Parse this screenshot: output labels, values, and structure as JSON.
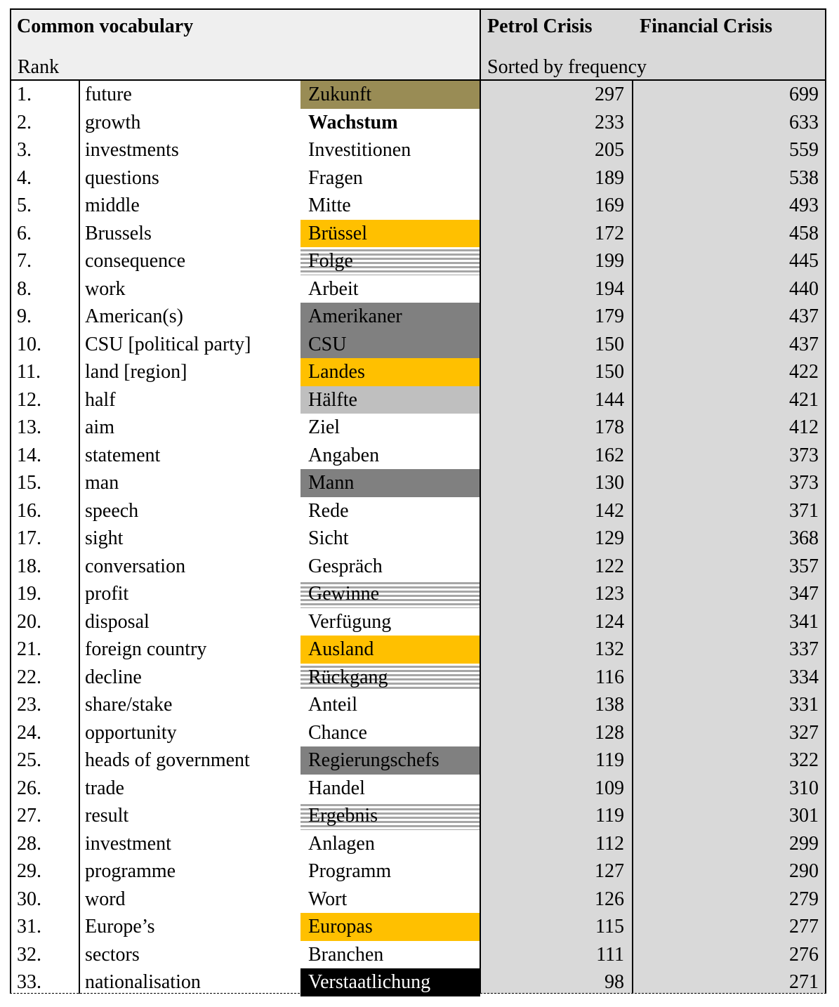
{
  "header": {
    "common_vocabulary": "Common vocabulary",
    "rank": "Rank",
    "petrol_crisis": "Petrol Crisis",
    "financial_crisis": "Financial Crisis",
    "sorted_by": "Sorted by frequency"
  },
  "highlight_colors": {
    "olive": "#998c55",
    "amber": "#ffc000",
    "dark_gray": "#808080",
    "light_gray": "#bfbfbf",
    "black": "#000000",
    "striped_gray": "#a6a6a6",
    "frequency_band": "#d9d9d9"
  },
  "rows": [
    {
      "rank": "1.",
      "english": "future",
      "german": "Zukunft",
      "petrol": "297",
      "financial": "699",
      "highlight": "olive"
    },
    {
      "rank": "2.",
      "english": "growth",
      "german": "Wachstum",
      "petrol": "233",
      "financial": "633",
      "highlight": "bold"
    },
    {
      "rank": "3.",
      "english": "investments",
      "german": "Investitionen",
      "petrol": "205",
      "financial": "559",
      "highlight": "none"
    },
    {
      "rank": "4.",
      "english": "questions",
      "german": "Fragen",
      "petrol": "189",
      "financial": "538",
      "highlight": "none"
    },
    {
      "rank": "5.",
      "english": "middle",
      "german": "Mitte",
      "petrol": "169",
      "financial": "493",
      "highlight": "none"
    },
    {
      "rank": "6.",
      "english": "Brussels",
      "german": "Brüssel",
      "petrol": "172",
      "financial": "458",
      "highlight": "amber"
    },
    {
      "rank": "7.",
      "english": "consequence",
      "german": "Folge",
      "petrol": "199",
      "financial": "445",
      "highlight": "striped"
    },
    {
      "rank": "8.",
      "english": "work",
      "german": "Arbeit",
      "petrol": "194",
      "financial": "440",
      "highlight": "none"
    },
    {
      "rank": "9.",
      "english": "American(s)",
      "german": "Amerikaner",
      "petrol": "179",
      "financial": "437",
      "highlight": "dark"
    },
    {
      "rank": "10.",
      "english": "CSU [political party]",
      "german": "CSU",
      "petrol": "150",
      "financial": "437",
      "highlight": "dark"
    },
    {
      "rank": "11.",
      "english": "land [region]",
      "german": "Landes",
      "petrol": "150",
      "financial": "422",
      "highlight": "amber"
    },
    {
      "rank": "12.",
      "english": "half",
      "german": "Hälfte",
      "petrol": "144",
      "financial": "421",
      "highlight": "light"
    },
    {
      "rank": "13.",
      "english": "aim",
      "german": "Ziel",
      "petrol": "178",
      "financial": "412",
      "highlight": "none"
    },
    {
      "rank": "14.",
      "english": "statement",
      "german": "Angaben",
      "petrol": "162",
      "financial": "373",
      "highlight": "none"
    },
    {
      "rank": "15.",
      "english": "man",
      "german": "Mann",
      "petrol": "130",
      "financial": "373",
      "highlight": "dark"
    },
    {
      "rank": "16.",
      "english": "speech",
      "german": "Rede",
      "petrol": "142",
      "financial": "371",
      "highlight": "none"
    },
    {
      "rank": "17.",
      "english": "sight",
      "german": "Sicht",
      "petrol": "129",
      "financial": "368",
      "highlight": "none"
    },
    {
      "rank": "18.",
      "english": "conversation",
      "german": "Gespräch",
      "petrol": "122",
      "financial": "357",
      "highlight": "none"
    },
    {
      "rank": "19.",
      "english": "profit",
      "german": "Gewinne",
      "petrol": "123",
      "financial": "347",
      "highlight": "striped"
    },
    {
      "rank": "20.",
      "english": "disposal",
      "german": "Verfügung",
      "petrol": "124",
      "financial": "341",
      "highlight": "none"
    },
    {
      "rank": "21.",
      "english": "foreign country",
      "german": "Ausland",
      "petrol": "132",
      "financial": "337",
      "highlight": "amber"
    },
    {
      "rank": "22.",
      "english": "decline",
      "german": "Rückgang",
      "petrol": "116",
      "financial": "334",
      "highlight": "striped"
    },
    {
      "rank": "23.",
      "english": "share/stake",
      "german": "Anteil",
      "petrol": "138",
      "financial": "331",
      "highlight": "none"
    },
    {
      "rank": "24.",
      "english": "opportunity",
      "german": "Chance",
      "petrol": "128",
      "financial": "327",
      "highlight": "none"
    },
    {
      "rank": "25.",
      "english": "heads of government",
      "german": "Regierungschefs",
      "petrol": "119",
      "financial": "322",
      "highlight": "dark"
    },
    {
      "rank": "26.",
      "english": "trade",
      "german": "Handel",
      "petrol": "109",
      "financial": "310",
      "highlight": "none"
    },
    {
      "rank": "27.",
      "english": "result",
      "german": "Ergebnis",
      "petrol": "119",
      "financial": "301",
      "highlight": "striped"
    },
    {
      "rank": "28.",
      "english": "investment",
      "german": "Anlagen",
      "petrol": "112",
      "financial": "299",
      "highlight": "none"
    },
    {
      "rank": "29.",
      "english": "programme",
      "german": "Programm",
      "petrol": "127",
      "financial": "290",
      "highlight": "none"
    },
    {
      "rank": "30.",
      "english": "word",
      "german": "Wort",
      "petrol": "126",
      "financial": "279",
      "highlight": "none"
    },
    {
      "rank": "31.",
      "english": "Europe’s",
      "german": "Europas",
      "petrol": "115",
      "financial": "277",
      "highlight": "amber"
    },
    {
      "rank": "32.",
      "english": "sectors",
      "german": "Branchen",
      "petrol": "111",
      "financial": "276",
      "highlight": "none"
    },
    {
      "rank": "33.",
      "english": "nationalisation",
      "german": "Verstaatlichung",
      "petrol": "98",
      "financial": "271",
      "highlight": "black"
    }
  ]
}
